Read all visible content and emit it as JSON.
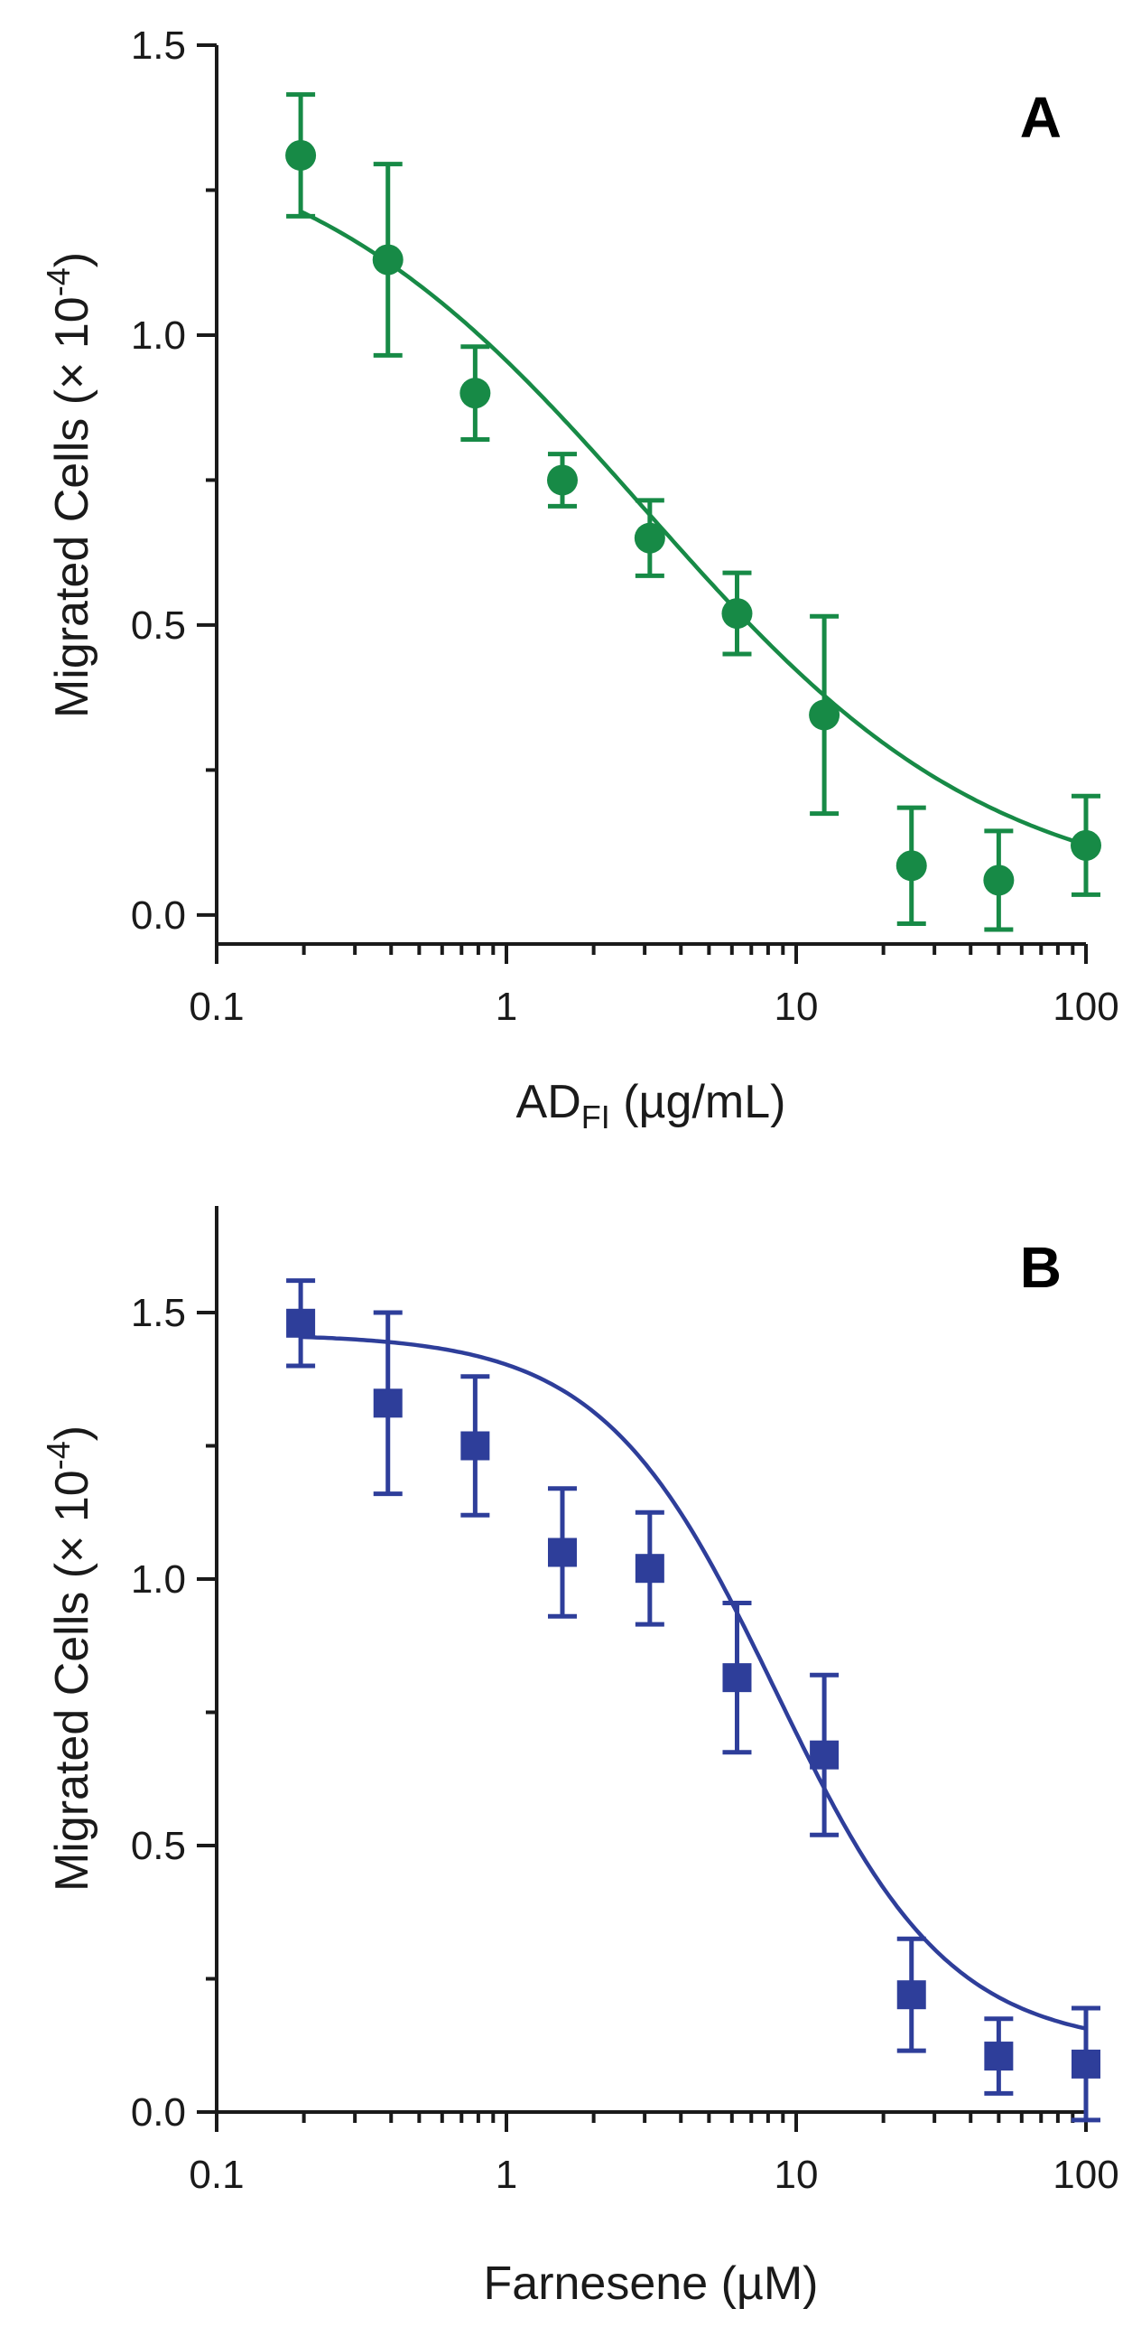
{
  "chart_data": [
    {
      "type": "scatter",
      "panel_label": "A",
      "xlabel_main": "AD",
      "xlabel_sub": "FI",
      "xlabel_unit": " (µg/mL)",
      "ylabel_main": "Migrated Cells (× 10",
      "ylabel_exp": "-4",
      "ylabel_end": ")",
      "x_scale": "log",
      "xlim": [
        0.1,
        100
      ],
      "ylim": [
        -0.05,
        1.5
      ],
      "x_ticks": [
        0.1,
        1,
        10,
        100
      ],
      "x_tick_labels": [
        "0.1",
        "1",
        "10",
        "100"
      ],
      "y_ticks": [
        0.0,
        0.5,
        1.0,
        1.5
      ],
      "y_tick_labels": [
        "0.0",
        "0.5",
        "1.0",
        "1.5"
      ],
      "marker": "circle",
      "color": "#178a46",
      "grid": false,
      "points": [
        {
          "x": 0.195,
          "y": 1.31,
          "err": 0.105
        },
        {
          "x": 0.39,
          "y": 1.13,
          "err": 0.165
        },
        {
          "x": 0.78,
          "y": 0.9,
          "err": 0.08
        },
        {
          "x": 1.56,
          "y": 0.75,
          "err": 0.045
        },
        {
          "x": 3.125,
          "y": 0.65,
          "err": 0.065
        },
        {
          "x": 6.25,
          "y": 0.52,
          "err": 0.07
        },
        {
          "x": 12.5,
          "y": 0.345,
          "err": 0.17
        },
        {
          "x": 25,
          "y": 0.085,
          "err": 0.1
        },
        {
          "x": 50,
          "y": 0.06,
          "err": 0.085
        },
        {
          "x": 100,
          "y": 0.12,
          "err": 0.085
        }
      ],
      "fit": {
        "bottom": 0.02,
        "top": 1.38,
        "ec50": 3.0,
        "hill": 0.72
      }
    },
    {
      "type": "scatter",
      "panel_label": "B",
      "xlabel_main": "Farnesene (µM)",
      "ylabel_main": "Migrated Cells (× 10",
      "ylabel_exp": "-4",
      "ylabel_end": ")",
      "x_scale": "log",
      "xlim": [
        0.1,
        100
      ],
      "ylim": [
        0.0,
        1.7
      ],
      "x_ticks": [
        0.1,
        1,
        10,
        100
      ],
      "x_tick_labels": [
        "0.1",
        "1",
        "10",
        "100"
      ],
      "y_ticks": [
        0.0,
        0.5,
        1.0,
        1.5
      ],
      "y_tick_labels": [
        "0.0",
        "0.5",
        "1.0",
        "1.5"
      ],
      "marker": "square",
      "color": "#2e3e9a",
      "grid": false,
      "points": [
        {
          "x": 0.195,
          "y": 1.48,
          "err": 0.08
        },
        {
          "x": 0.39,
          "y": 1.33,
          "err": 0.17
        },
        {
          "x": 0.78,
          "y": 1.25,
          "err": 0.13
        },
        {
          "x": 1.56,
          "y": 1.05,
          "err": 0.12
        },
        {
          "x": 3.125,
          "y": 1.02,
          "err": 0.105
        },
        {
          "x": 6.25,
          "y": 0.815,
          "err": 0.14
        },
        {
          "x": 12.5,
          "y": 0.67,
          "err": 0.15
        },
        {
          "x": 25,
          "y": 0.22,
          "err": 0.105
        },
        {
          "x": 50,
          "y": 0.105,
          "err": 0.07
        },
        {
          "x": 100,
          "y": 0.09,
          "err": 0.105
        }
      ],
      "fit": {
        "bottom": 0.12,
        "top": 1.46,
        "ec50": 8.5,
        "hill": 1.45
      }
    }
  ]
}
